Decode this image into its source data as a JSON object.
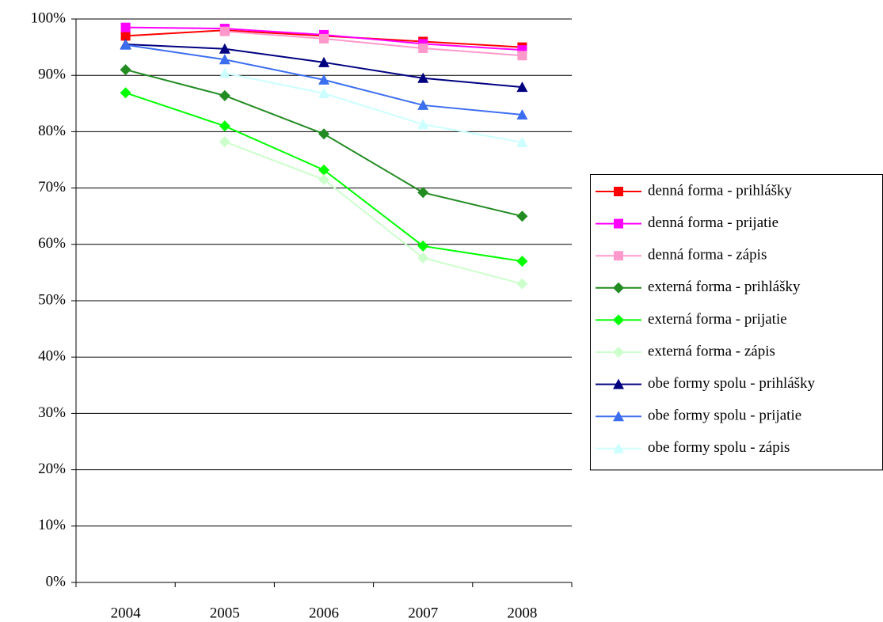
{
  "chart_data": {
    "type": "line",
    "categories": [
      "2004",
      "2005",
      "2006",
      "2007",
      "2008"
    ],
    "ylim": [
      0,
      100
    ],
    "yticks": [
      {
        "value": 0,
        "label": "0%"
      },
      {
        "value": 10,
        "label": "10%"
      },
      {
        "value": 20,
        "label": "20%"
      },
      {
        "value": 30,
        "label": "30%"
      },
      {
        "value": 40,
        "label": "40%"
      },
      {
        "value": 50,
        "label": "50%"
      },
      {
        "value": 60,
        "label": "60%"
      },
      {
        "value": 70,
        "label": "70%"
      },
      {
        "value": 80,
        "label": "80%"
      },
      {
        "value": 90,
        "label": "90%"
      },
      {
        "value": 100,
        "label": "100%"
      }
    ],
    "grid": true,
    "legend": "right",
    "series": [
      {
        "name": "denná forma - prihlášky",
        "color": "#ff0000",
        "marker": "square",
        "values": [
          97,
          98,
          97,
          96,
          95
        ]
      },
      {
        "name": "denná forma - prijatie",
        "color": "#ff00ff",
        "marker": "square",
        "values": [
          98.5,
          98.3,
          97.2,
          95.6,
          94.5
        ]
      },
      {
        "name": "denná forma - zápis",
        "color": "#ff99cc",
        "marker": "square",
        "values": [
          null,
          97.8,
          96.5,
          94.8,
          93.5
        ]
      },
      {
        "name": "externá forma - prihlášky",
        "color": "#228b22",
        "marker": "diamond",
        "values": [
          91,
          86.4,
          79.6,
          69.2,
          65
        ]
      },
      {
        "name": "externá forma - prijatie",
        "color": "#00ff00",
        "marker": "diamond",
        "values": [
          86.9,
          81,
          73.2,
          59.7,
          57
        ]
      },
      {
        "name": "externá forma - zápis",
        "color": "#ccffcc",
        "marker": "diamond",
        "values": [
          null,
          78.2,
          71.5,
          57.6,
          53
        ]
      },
      {
        "name": "obe formy spolu - prihlášky",
        "color": "#000080",
        "marker": "triangle",
        "values": [
          95.5,
          94.7,
          92.3,
          89.5,
          87.9
        ]
      },
      {
        "name": "obe formy spolu - prijatie",
        "color": "#3c6ef0",
        "marker": "triangle",
        "values": [
          95.4,
          92.8,
          89.2,
          84.7,
          83
        ]
      },
      {
        "name": "obe formy spolu - zápis",
        "color": "#ccffff",
        "marker": "triangle",
        "values": [
          null,
          90.4,
          86.8,
          81.3,
          78.1
        ]
      }
    ]
  }
}
